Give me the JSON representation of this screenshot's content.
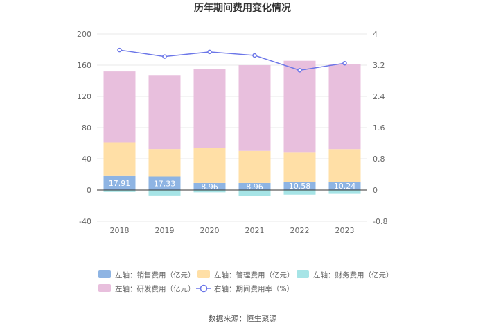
{
  "chart_data": {
    "type": "bar",
    "title": "历年期间费用变化情况",
    "categories": [
      "2018",
      "2019",
      "2020",
      "2021",
      "2022",
      "2023"
    ],
    "stacked": true,
    "left_axis": {
      "min": -40,
      "max": 200,
      "ticks": [
        "200",
        "160",
        "120",
        "80",
        "40",
        "0",
        "-40"
      ]
    },
    "right_axis": {
      "min": -0.8,
      "max": 4,
      "ticks": [
        "4",
        "3.2",
        "2.4",
        "1.6",
        "0.8",
        "0",
        "-0.8"
      ]
    },
    "series": [
      {
        "name": "左轴：销售费用（亿元）",
        "type": "bar",
        "axis": "left",
        "color": "#8eb4e3",
        "values": [
          17.91,
          17.33,
          8.96,
          8.96,
          10.58,
          10.24
        ],
        "labels": [
          "17.91",
          "17.33",
          "8.96",
          "8.96",
          "10.58",
          "10.24"
        ]
      },
      {
        "name": "左轴：管理费用（亿元）",
        "type": "bar",
        "axis": "left",
        "color": "#ffdfa6",
        "values": [
          43,
          35,
          45,
          41,
          38,
          42
        ]
      },
      {
        "name": "左轴：财务费用（亿元）",
        "type": "bar",
        "axis": "left",
        "color": "#a6e4e6",
        "values": [
          -2.5,
          -7,
          -3,
          -8,
          -6,
          -5
        ]
      },
      {
        "name": "左轴：研发费用（亿元）",
        "type": "bar",
        "axis": "left",
        "color": "#e8bfdd",
        "values": [
          91,
          95,
          101,
          110,
          117,
          109
        ]
      },
      {
        "name": "右轴：期间费用率（%）",
        "type": "line",
        "axis": "right",
        "color": "#6b76e8",
        "values": [
          3.59,
          3.42,
          3.54,
          3.45,
          3.07,
          3.25
        ]
      }
    ],
    "legend_position": "bottom",
    "grid": true
  },
  "footer": {
    "source": "数据来源：恒生聚源"
  }
}
